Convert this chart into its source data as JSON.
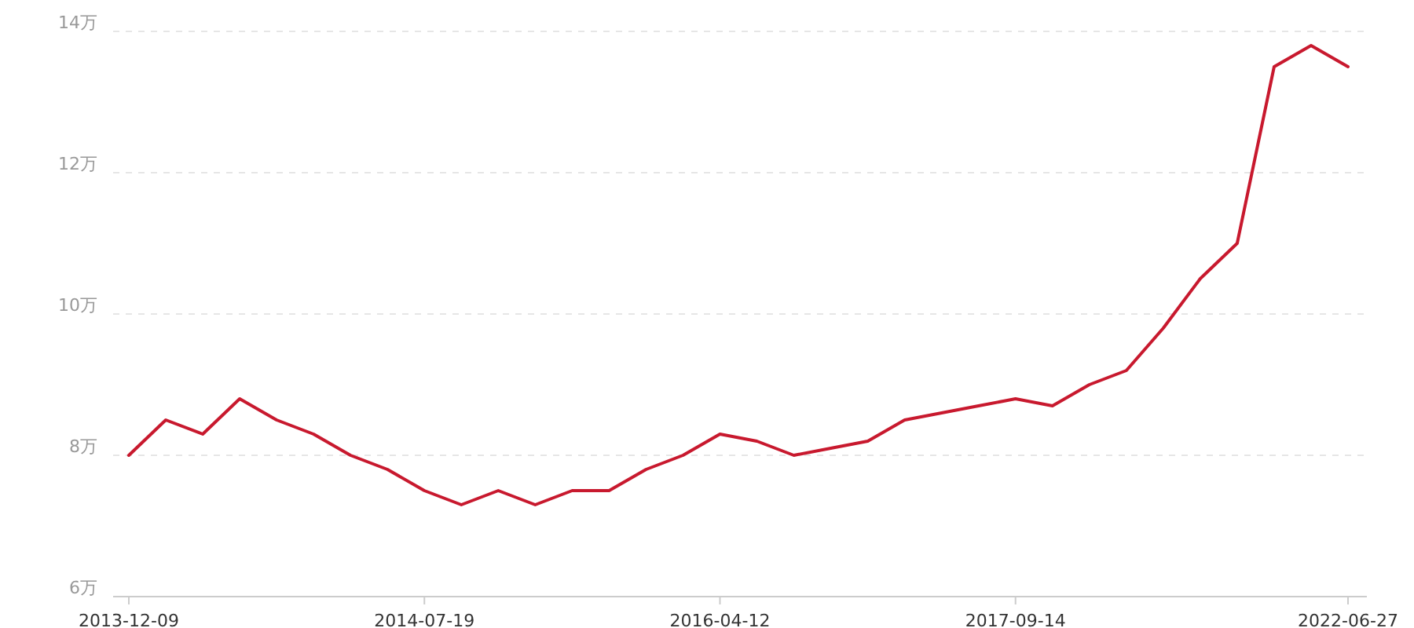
{
  "chart_data": {
    "type": "line",
    "categories": [
      "2013-12-09",
      null,
      null,
      null,
      null,
      null,
      null,
      null,
      "2014-07-19",
      null,
      null,
      null,
      null,
      null,
      null,
      null,
      "2016-04-12",
      null,
      null,
      null,
      null,
      null,
      null,
      null,
      "2017-09-14",
      null,
      null,
      null,
      null,
      null,
      null,
      null,
      null,
      "2022-06-27"
    ],
    "series": [
      {
        "color": "#c8192e",
        "values": [
          8.0,
          8.5,
          8.3,
          8.8,
          8.5,
          8.3,
          8.0,
          7.8,
          7.5,
          7.3,
          7.5,
          7.3,
          7.5,
          7.5,
          7.8,
          8.0,
          8.3,
          8.2,
          8.0,
          8.1,
          8.2,
          8.5,
          8.6,
          8.7,
          8.8,
          8.7,
          9.0,
          9.2,
          9.8,
          10.5,
          11.0,
          13.5,
          13.8,
          13.5
        ]
      }
    ],
    "ylim": [
      6,
      14
    ],
    "yticks": [
      {
        "value": 6,
        "label": "6万"
      },
      {
        "value": 8,
        "label": "8万"
      },
      {
        "value": 10,
        "label": "10万"
      },
      {
        "value": 12,
        "label": "12万"
      },
      {
        "value": 14,
        "label": "14万"
      }
    ],
    "grid": "y"
  }
}
